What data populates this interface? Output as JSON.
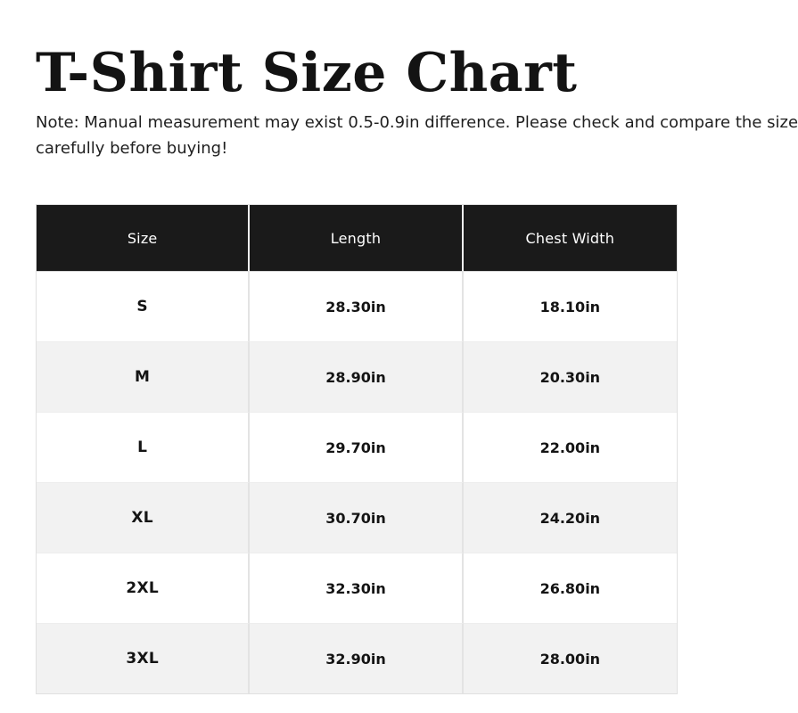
{
  "header": {
    "title": "T-Shirt Size Chart",
    "note_lines": [
      "Note: Manual measurement may exist 0.5-0.9in difference. Please check and compare the size",
      "carefully before buying!"
    ]
  },
  "colors": {
    "header_bg": "#1a1a1a",
    "header_text": "#ffffff",
    "stripe_bg": "#f2f2f2",
    "body_text": "#141414",
    "divider": "#e3e3e3"
  },
  "chart_data": {
    "type": "table",
    "title": "T-Shirt Size Chart",
    "columns": [
      "Size",
      "Length",
      "Chest Width"
    ],
    "categories": [
      "S",
      "M",
      "L",
      "XL",
      "2XL",
      "3XL"
    ],
    "units": "in",
    "series": [
      {
        "name": "Length",
        "values": [
          28.3,
          28.9,
          29.7,
          30.7,
          32.3,
          32.9
        ]
      },
      {
        "name": "Chest Width",
        "values": [
          18.1,
          20.3,
          22.0,
          24.2,
          26.8,
          28.0
        ]
      }
    ],
    "rows": [
      [
        "S",
        "28.30in",
        "18.10in"
      ],
      [
        "M",
        "28.90in",
        "20.30in"
      ],
      [
        "L",
        "29.70in",
        "22.00in"
      ],
      [
        "XL",
        "30.70in",
        "24.20in"
      ],
      [
        "2XL",
        "32.30in",
        "26.80in"
      ],
      [
        "3XL",
        "32.90in",
        "28.00in"
      ]
    ]
  }
}
